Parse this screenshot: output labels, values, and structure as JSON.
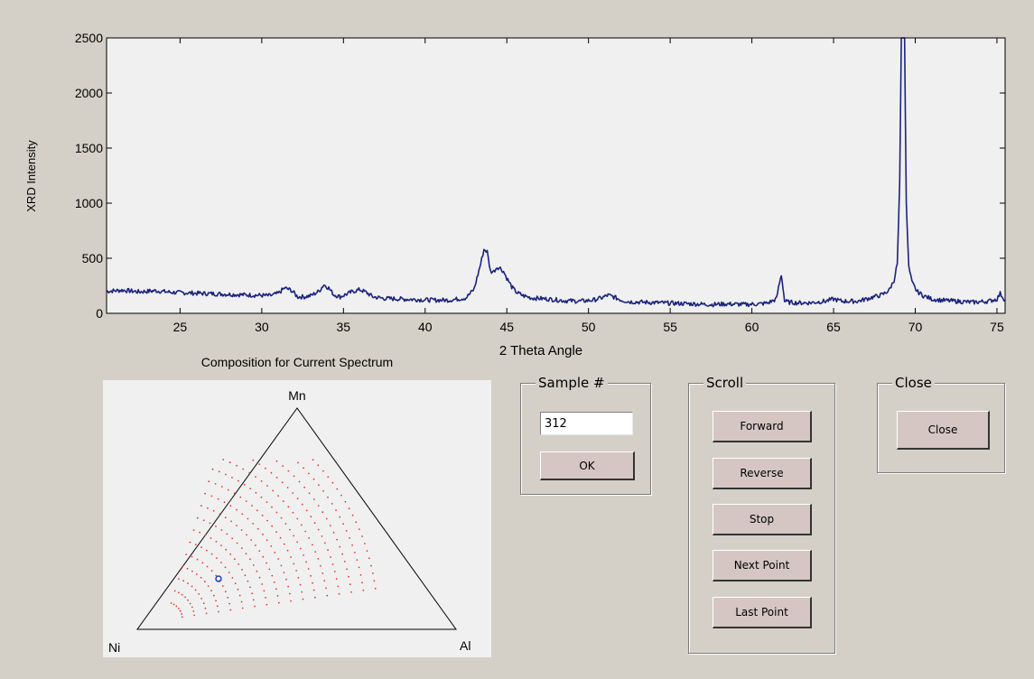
{
  "xrd_chart": {
    "chart_data": {
      "type": "line",
      "xlabel": "2 Theta Angle",
      "ylabel": "XRD Intensity",
      "xlim": [
        20.5,
        75.5
      ],
      "ylim": [
        0,
        2500
      ],
      "xticks": [
        25,
        30,
        35,
        40,
        45,
        50,
        55,
        60,
        65,
        70,
        75
      ],
      "yticks": [
        0,
        500,
        1000,
        1500,
        2000,
        2500
      ],
      "grid": false,
      "line_color": "#1a237e",
      "series": [
        {
          "x": [
            20.5,
            21.5,
            22.5,
            23.5,
            24.5,
            25.5,
            26.5,
            27.5,
            28.5,
            29.5,
            30.5,
            31.0,
            31.4,
            31.8,
            32.2,
            32.6,
            33.0,
            33.5,
            33.8,
            34.1,
            34.4,
            34.8,
            35.2,
            35.6,
            36.0,
            36.4,
            36.8,
            37.5,
            38.5,
            39.5,
            40.5,
            41.5,
            42.5,
            43.0,
            43.4,
            43.6,
            43.8,
            44.0,
            44.2,
            44.4,
            44.6,
            44.8,
            45.0,
            45.3,
            45.6,
            46.0,
            46.5,
            47.5,
            48.5,
            49.5,
            50.3,
            50.8,
            51.2,
            51.6,
            52.0,
            52.5,
            53.5,
            54.5,
            55.5,
            56.5,
            57.5,
            58.5,
            59.5,
            60.5,
            61.0,
            61.5,
            61.7,
            61.8,
            61.9,
            62.0,
            62.3,
            62.8,
            63.5,
            64.5,
            65.0,
            65.5,
            66.5,
            67.5,
            68.0,
            68.4,
            68.7,
            68.9,
            69.05,
            69.15,
            69.25,
            69.35,
            69.45,
            69.6,
            69.8,
            70.1,
            70.5,
            71.0,
            71.5,
            72.5,
            73.5,
            74.5,
            75.0,
            75.2,
            75.5
          ],
          "y": [
            200,
            210,
            195,
            205,
            190,
            185,
            180,
            175,
            170,
            165,
            160,
            180,
            230,
            210,
            150,
            150,
            160,
            200,
            260,
            230,
            170,
            150,
            175,
            200,
            215,
            190,
            150,
            135,
            130,
            125,
            120,
            120,
            140,
            220,
            450,
            580,
            560,
            380,
            380,
            420,
            410,
            380,
            320,
            240,
            190,
            160,
            140,
            130,
            115,
            110,
            120,
            140,
            165,
            145,
            120,
            105,
            100,
            95,
            90,
            85,
            80,
            85,
            80,
            85,
            95,
            130,
            280,
            350,
            240,
            110,
            100,
            95,
            95,
            110,
            130,
            110,
            110,
            150,
            170,
            210,
            300,
            450,
            1200,
            2500,
            2500,
            2500,
            1000,
            420,
            280,
            200,
            160,
            130,
            120,
            110,
            100,
            110,
            130,
            180,
            120
          ]
        }
      ]
    }
  },
  "composition": {
    "title": "Composition for Current Spectrum",
    "vertex_labels": {
      "top": "Mn",
      "left": "Ni",
      "right": "Al"
    },
    "composition_color": "#e53935",
    "current_marker_color": "#1a3ac0"
  },
  "sample_panel": {
    "title": "Sample #",
    "value": "312",
    "ok_label": "OK"
  },
  "scroll_panel": {
    "title": "Scroll",
    "forward_label": "Forward",
    "reverse_label": "Reverse",
    "stop_label": "Stop",
    "next_point_label": "Next Point",
    "last_point_label": "Last Point"
  },
  "close_panel": {
    "title": "Close",
    "close_label": "Close"
  }
}
